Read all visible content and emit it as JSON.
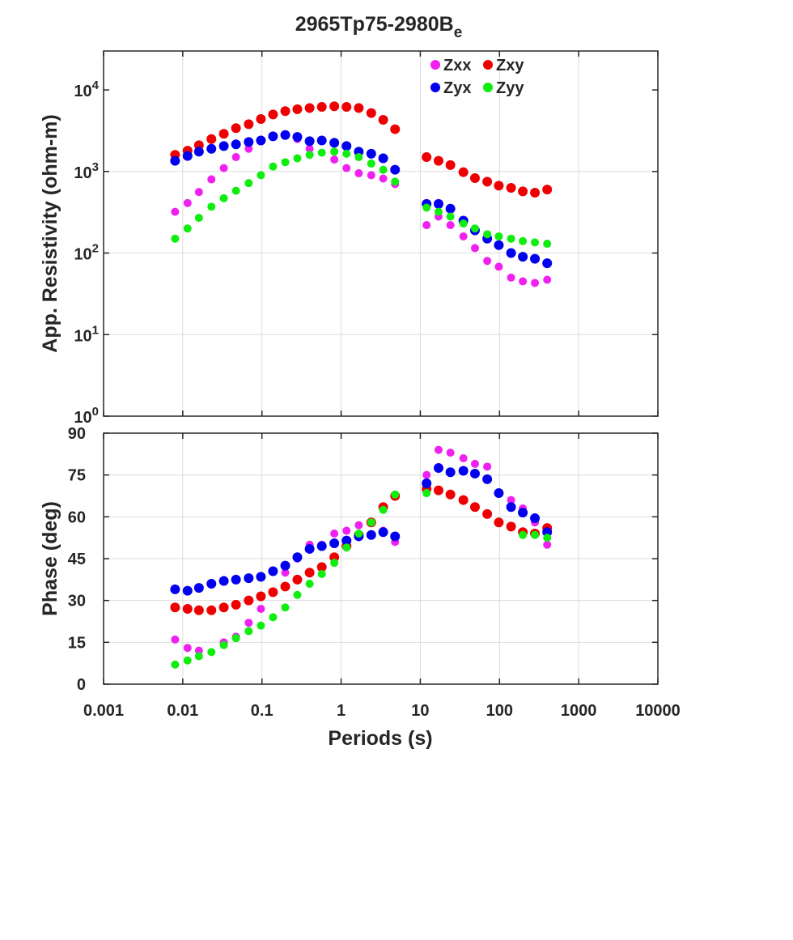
{
  "chart_data": {
    "type": "scatter",
    "title": "2965Tp75-2980B",
    "title_subscript": "e",
    "xlabel": "Periods (s)",
    "x_scale": "log",
    "xlim": [
      0.001,
      10000
    ],
    "x_ticks": [
      0.001,
      0.01,
      0.1,
      1,
      10,
      100,
      1000,
      10000
    ],
    "x_tick_labels": [
      "0.001",
      "0.01",
      "0.1",
      "1",
      "10",
      "100",
      "1000",
      "10000"
    ],
    "grid": true,
    "legend": {
      "placement": "top-right",
      "entries": [
        {
          "name": "Zxx",
          "color": "#f020f0"
        },
        {
          "name": "Zxy",
          "color": "#ee0000"
        },
        {
          "name": "Zyx",
          "color": "#0000ee"
        },
        {
          "name": "Zyy",
          "color": "#10ee10"
        }
      ]
    },
    "x": [
      0.008,
      0.0115,
      0.016,
      0.023,
      0.033,
      0.047,
      0.068,
      0.097,
      0.138,
      0.197,
      0.28,
      0.4,
      0.57,
      0.82,
      1.17,
      1.67,
      2.4,
      3.4,
      4.8,
      12.0,
      17.0,
      24.0,
      35.0,
      49.0,
      70.0,
      98.0,
      140.0,
      197.0,
      280.0,
      400.0
    ],
    "panels": [
      {
        "id": "resistivity",
        "ylabel": "App. Resistivity (ohm-m)",
        "y_scale": "log",
        "ylim": [
          1,
          30000
        ],
        "y_ticks": [
          1,
          10,
          100,
          1000,
          10000
        ],
        "y_tick_base": [
          "10",
          "10",
          "10",
          "10",
          "10"
        ],
        "y_tick_exp": [
          "0",
          "1",
          "2",
          "3",
          "4"
        ],
        "series": [
          {
            "name": "Zxx",
            "color": "#f020f0",
            "radius": 5,
            "values": [
              320,
              410,
              560,
              800,
              1100,
              1500,
              1900,
              null,
              null,
              null,
              2500,
              1900,
              null,
              1400,
              1100,
              950,
              900,
              820,
              700,
              220,
              280,
              220,
              160,
              115,
              80,
              68,
              50,
              45,
              43,
              47
            ]
          },
          {
            "name": "Zxy",
            "color": "#ee0000",
            "radius": 6,
            "values": [
              1600,
              1800,
              2100,
              2500,
              2900,
              3400,
              3800,
              4400,
              5000,
              5500,
              5800,
              6000,
              6200,
              6300,
              6200,
              6000,
              5200,
              4300,
              3300,
              1500,
              1350,
              1200,
              980,
              830,
              750,
              670,
              630,
              570,
              550,
              600
            ]
          },
          {
            "name": "Zyx",
            "color": "#0000ee",
            "radius": 6,
            "values": [
              1350,
              1550,
              1750,
              1900,
              2050,
              2150,
              2300,
              2400,
              2700,
              2800,
              2650,
              2350,
              2400,
              2250,
              2050,
              1750,
              1650,
              1450,
              1050,
              400,
              400,
              350,
              250,
              190,
              150,
              125,
              100,
              90,
              85,
              75
            ]
          },
          {
            "name": "Zyy",
            "color": "#10ee10",
            "radius": 5,
            "values": [
              150,
              200,
              270,
              370,
              470,
              580,
              720,
              900,
              1150,
              1300,
              1450,
              1600,
              1700,
              1750,
              1650,
              1500,
              1250,
              1050,
              750,
              360,
              320,
              280,
              230,
              200,
              170,
              160,
              150,
              140,
              135,
              130
            ]
          }
        ]
      },
      {
        "id": "phase",
        "ylabel": "Phase (deg)",
        "y_scale": "linear",
        "ylim": [
          0,
          90
        ],
        "y_ticks": [
          0,
          15,
          30,
          45,
          60,
          75,
          90
        ],
        "y_tick_labels": [
          "0",
          "15",
          "30",
          "45",
          "60",
          "75",
          "90"
        ],
        "series": [
          {
            "name": "Zxx",
            "color": "#f020f0",
            "radius": 5,
            "values": [
              16,
              13,
              12,
              null,
              15,
              17,
              22,
              27,
              33,
              40,
              45,
              50,
              50,
              54,
              55,
              57,
              null,
              55,
              51,
              75,
              84,
              83,
              81,
              79,
              78,
              null,
              66,
              63,
              58,
              50
            ]
          },
          {
            "name": "Zxy",
            "color": "#ee0000",
            "radius": 6,
            "values": [
              27.5,
              27,
              26.5,
              26.5,
              27.5,
              28.5,
              30,
              31.5,
              33,
              35,
              37.5,
              40,
              42,
              45.5,
              49.5,
              53.5,
              58,
              63.5,
              67.5,
              70,
              69.5,
              68,
              66,
              63.5,
              61,
              58,
              56.5,
              54.5,
              54,
              56
            ]
          },
          {
            "name": "Zyx",
            "color": "#0000ee",
            "radius": 6,
            "values": [
              34,
              33.5,
              34.5,
              36,
              37,
              37.5,
              38,
              38.5,
              40.5,
              42.5,
              45.5,
              48.5,
              49.5,
              50.5,
              51.5,
              53,
              53.5,
              54.5,
              53,
              72,
              77.5,
              76,
              76.5,
              75.5,
              73.5,
              68.5,
              63.5,
              61.5,
              59.5,
              54.5
            ]
          },
          {
            "name": "Zyy",
            "color": "#10ee10",
            "radius": 5,
            "values": [
              7,
              8.5,
              10,
              11.5,
              14,
              16.5,
              19,
              21,
              24,
              27.5,
              32,
              36,
              39.5,
              43.5,
              49,
              54,
              58,
              62.5,
              68,
              68.5,
              null,
              null,
              null,
              null,
              null,
              null,
              null,
              53.5,
              53.5,
              52.5
            ]
          }
        ]
      }
    ]
  }
}
